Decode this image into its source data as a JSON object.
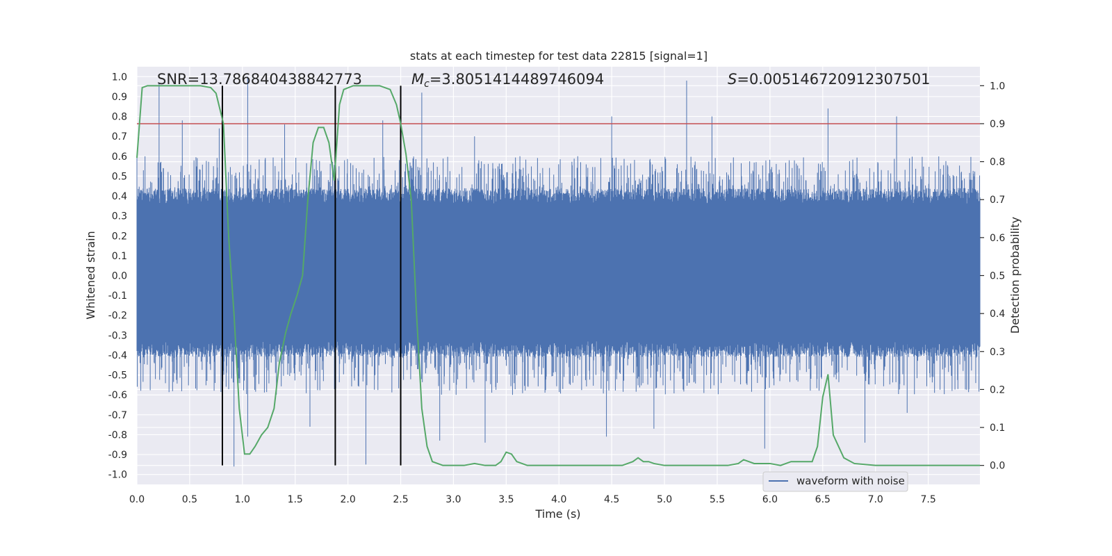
{
  "chart_data": {
    "type": "line",
    "title": "stats at each timestep for test data 22815 [signal=1]",
    "xlabel": "Time (s)",
    "ylabel": "Whitened strain",
    "y2label": "Detection probability",
    "xlim": [
      0.0,
      7.99
    ],
    "ylim": [
      -1.05,
      1.05
    ],
    "y2lim": [
      -0.05,
      1.05
    ],
    "xticks": [
      "0.0",
      "0.5",
      "1.0",
      "1.5",
      "2.0",
      "2.5",
      "3.0",
      "3.5",
      "4.0",
      "4.5",
      "5.0",
      "5.5",
      "6.0",
      "6.5",
      "7.0",
      "7.5"
    ],
    "yticks": [
      "1.0",
      "0.9",
      "0.8",
      "0.7",
      "0.6",
      "0.5",
      "0.4",
      "0.3",
      "0.2",
      "0.1",
      "0.0",
      "-0.1",
      "-0.2",
      "-0.3",
      "-0.4",
      "-0.5",
      "-0.6",
      "-0.7",
      "-0.8",
      "-0.9",
      "-1.0"
    ],
    "y2ticks": [
      "1.0",
      "0.9",
      "0.8",
      "0.7",
      "0.6",
      "0.5",
      "0.4",
      "0.3",
      "0.2",
      "0.1",
      "0.0"
    ],
    "grid": true,
    "legend_position": "lower-right",
    "annotations": {
      "snr_prefix": "SNR=",
      "snr_value": "13.786840438842773",
      "mc_symbol": "M",
      "mc_subscript": "c",
      "mc_value": "=3.8051414489746094",
      "s_symbol": "S",
      "s_value": "=0.005146720912307501"
    },
    "threshold": {
      "y2": 0.9,
      "color": "#c44e52"
    },
    "vertical_lines": [
      0.81,
      1.88,
      2.5
    ],
    "vertical_line_range_y2": [
      0.0,
      1.0
    ],
    "series": [
      {
        "name": "waveform with noise",
        "axis": "left",
        "color": "#4c72b0",
        "envelope": {
          "dense_band": [
            -0.38,
            0.41
          ],
          "typical_peak": [
            -0.6,
            0.6
          ]
        },
        "spikes": [
          [
            0.21,
            0.97
          ],
          [
            0.43,
            0.78
          ],
          [
            0.78,
            0.74
          ],
          [
            1.05,
            1.0
          ],
          [
            1.4,
            0.76
          ],
          [
            2.33,
            0.78
          ],
          [
            2.7,
            0.92
          ],
          [
            3.2,
            0.7
          ],
          [
            3.63,
            0.6
          ],
          [
            4.5,
            0.8
          ],
          [
            5.21,
            0.98
          ],
          [
            5.45,
            0.8
          ],
          [
            6.55,
            0.84
          ],
          [
            7.2,
            0.8
          ],
          [
            0.92,
            -0.96
          ],
          [
            1.05,
            -0.81
          ],
          [
            1.64,
            -0.76
          ],
          [
            2.17,
            -0.95
          ],
          [
            2.87,
            -0.83
          ],
          [
            3.3,
            -0.84
          ],
          [
            4.45,
            -0.81
          ],
          [
            4.9,
            -0.77
          ],
          [
            5.95,
            -0.87
          ],
          [
            6.9,
            -0.84
          ],
          [
            7.3,
            -0.69
          ]
        ]
      },
      {
        "name": "detection probability",
        "axis": "right",
        "color": "#55a868",
        "x": [
          0.0,
          0.05,
          0.1,
          0.2,
          0.3,
          0.4,
          0.5,
          0.6,
          0.7,
          0.75,
          0.82,
          0.87,
          0.92,
          0.97,
          1.02,
          1.07,
          1.12,
          1.18,
          1.24,
          1.3,
          1.35,
          1.41,
          1.46,
          1.52,
          1.57,
          1.62,
          1.67,
          1.72,
          1.77,
          1.82,
          1.87,
          1.92,
          1.96,
          2.05,
          2.15,
          2.3,
          2.4,
          2.46,
          2.5,
          2.55,
          2.6,
          2.65,
          2.7,
          2.75,
          2.8,
          2.9,
          3.0,
          3.1,
          3.2,
          3.3,
          3.4,
          3.45,
          3.5,
          3.55,
          3.6,
          3.7,
          3.8,
          4.0,
          4.2,
          4.4,
          4.6,
          4.7,
          4.75,
          4.8,
          4.85,
          4.9,
          5.0,
          5.2,
          5.4,
          5.6,
          5.7,
          5.75,
          5.8,
          5.85,
          5.9,
          6.0,
          6.1,
          6.2,
          6.3,
          6.4,
          6.45,
          6.5,
          6.55,
          6.6,
          6.7,
          6.8,
          7.0,
          7.2,
          7.4,
          7.6,
          7.8,
          7.99
        ],
        "values": [
          0.81,
          0.995,
          1.0,
          1.0,
          1.0,
          1.0,
          1.0,
          1.0,
          0.995,
          0.98,
          0.9,
          0.6,
          0.4,
          0.15,
          0.03,
          0.03,
          0.05,
          0.08,
          0.1,
          0.15,
          0.27,
          0.35,
          0.4,
          0.45,
          0.5,
          0.7,
          0.85,
          0.89,
          0.89,
          0.85,
          0.75,
          0.95,
          0.99,
          1.0,
          1.0,
          1.0,
          0.99,
          0.95,
          0.9,
          0.82,
          0.7,
          0.4,
          0.15,
          0.05,
          0.01,
          0.0,
          0.0,
          0.0,
          0.005,
          0.0,
          0.0,
          0.01,
          0.035,
          0.03,
          0.01,
          0.0,
          0.0,
          0.0,
          0.0,
          0.0,
          0.0,
          0.01,
          0.02,
          0.01,
          0.01,
          0.005,
          0.0,
          0.0,
          0.0,
          0.0,
          0.005,
          0.015,
          0.01,
          0.005,
          0.005,
          0.005,
          0.0,
          0.01,
          0.01,
          0.01,
          0.05,
          0.18,
          0.24,
          0.08,
          0.02,
          0.005,
          0.0,
          0.0,
          0.0,
          0.0,
          0.0,
          0.0
        ]
      }
    ]
  }
}
